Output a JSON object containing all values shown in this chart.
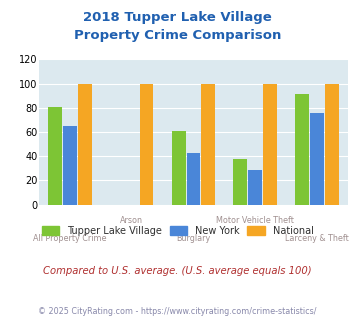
{
  "title": "2018 Tupper Lake Village\nProperty Crime Comparison",
  "categories": [
    "All Property Crime",
    "Arson",
    "Burglary",
    "Motor Vehicle Theft",
    "Larceny & Theft"
  ],
  "cat_row": [
    1,
    0,
    1,
    0,
    1
  ],
  "series": {
    "Tupper Lake Village": [
      81,
      0,
      61,
      38,
      91
    ],
    "New York": [
      65,
      0,
      43,
      29,
      76
    ],
    "National": [
      100,
      100,
      100,
      100,
      100
    ]
  },
  "colors": {
    "Tupper Lake Village": "#7dc535",
    "New York": "#4a86d8",
    "National": "#f5a623"
  },
  "ylim": [
    0,
    120
  ],
  "yticks": [
    0,
    20,
    40,
    60,
    80,
    100,
    120
  ],
  "background_color": "#dce9ef",
  "plot_bg": "#dce9ef",
  "title_color": "#2060b0",
  "xlabel_color": "#a09090",
  "legend_label_color": "#303030",
  "footnote1": "Compared to U.S. average. (U.S. average equals 100)",
  "footnote2": "© 2025 CityRating.com - https://www.cityrating.com/crime-statistics/",
  "footnote1_color": "#b03030",
  "footnote2_color": "#8888aa"
}
